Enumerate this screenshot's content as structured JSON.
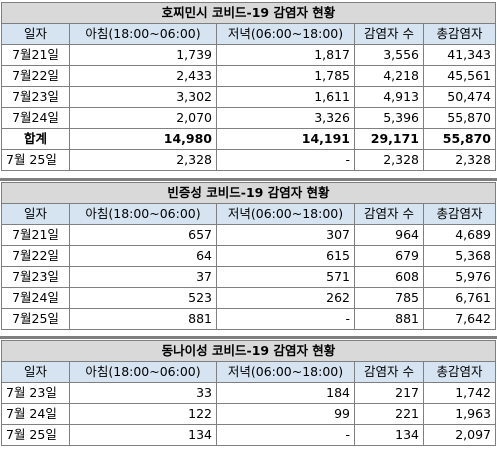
{
  "tables": [
    {
      "title": "호찌민시 코비드-19 감염자 현황",
      "headers": [
        "일자",
        "아침(18:00~06:00)",
        "저녁(06:00~18:00)",
        "감염자 수",
        "총감염자"
      ],
      "rows": [
        [
          "7월21일",
          "1,739",
          "1,817",
          "3,556",
          "41,343"
        ],
        [
          "7월22일",
          "2,433",
          "1,785",
          "4,218",
          "45,561"
        ],
        [
          "7월23일",
          "3,302",
          "1,611",
          "4,913",
          "50,474"
        ],
        [
          "7월24일",
          "2,070",
          "3,326",
          "5,396",
          "55,870"
        ],
        [
          "합계",
          "14,980",
          "14,191",
          "29,171",
          "55,870"
        ],
        [
          "7월 25일",
          "2,328",
          "-",
          "2,328",
          "2,328"
        ]
      ]
    },
    {
      "title": "빈증성 코비드-19 감염자 현황",
      "headers": [
        "일자",
        "아침(18:00~06:00)",
        "저녁(06:00~18:00)",
        "감염자 수",
        "총감염자"
      ],
      "rows": [
        [
          "7월21일",
          "657",
          "307",
          "964",
          "4,689"
        ],
        [
          "7월22일",
          "64",
          "615",
          "679",
          "5,368"
        ],
        [
          "7월23일",
          "37",
          "571",
          "608",
          "5,976"
        ],
        [
          "7월24일",
          "523",
          "262",
          "785",
          "6,761"
        ],
        [
          "7월25일",
          "881",
          "-",
          "881",
          "7,642"
        ]
      ]
    },
    {
      "title": "동나이성 코비드-19 감염자 현황",
      "headers": [
        "일자",
        "아침(18:00~06:00)",
        "저녁(06:00~18:00)",
        "감염자 수",
        "총감염자"
      ],
      "rows": [
        [
          "7월 23일",
          "33",
          "184",
          "217",
          "1,742"
        ],
        [
          "7월 24일",
          "122",
          "99",
          "221",
          "1,963"
        ],
        [
          "7월 25일",
          "134",
          "-",
          "134",
          "2,097"
        ]
      ]
    }
  ]
}
